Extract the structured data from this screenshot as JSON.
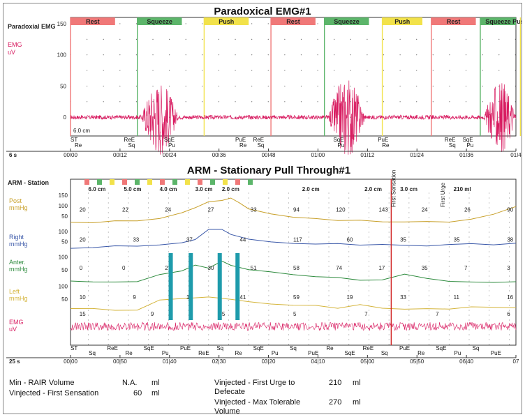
{
  "summary": {
    "min_rair_label": "Min - RAIR Volume",
    "min_rair_value": "N.A.",
    "min_rair_unit": "ml",
    "first_sensation_label": "Vinjected - First Sensation",
    "first_sensation_value": "60",
    "first_sensation_unit": "ml",
    "first_urge_label_1": "Vinjected - First Urge to",
    "first_urge_label_2": "Defecate",
    "first_urge_value": "210",
    "first_urge_unit": "ml",
    "max_tolerable_label_1": "Vinjected - Max Tolerable",
    "max_tolerable_label_2": "Volume",
    "max_tolerable_value": "270",
    "max_tolerable_unit": "ml"
  },
  "chart_data": [
    {
      "type": "line",
      "title": "Paradoxical EMG#1",
      "channel_label": "Paradoxial EMG",
      "ylabel": "EMG",
      "yunit": "uV",
      "yticks": [
        "150",
        "100",
        "50",
        "0"
      ],
      "ylim": [
        -30,
        160
      ],
      "xlim": [
        0,
        100
      ],
      "time_scale": "6 s",
      "scale_note": "6.0 cm",
      "xticks": [
        "00|00",
        "00|12",
        "00|24",
        "00|36",
        "00|48",
        "01|00",
        "01|12",
        "01|24",
        "01|36",
        "01|4"
      ],
      "segments": [
        {
          "label": "Rest",
          "start": 0,
          "end": 10,
          "color": "#f07878"
        },
        {
          "label": "Squeeze",
          "start": 15,
          "end": 25,
          "color": "#5cb56a"
        },
        {
          "label": "Push",
          "start": 30,
          "end": 40,
          "color": "#f2e24a"
        },
        {
          "label": "Rest",
          "start": 45,
          "end": 55,
          "color": "#f07878"
        },
        {
          "label": "Squeeze",
          "start": 57,
          "end": 67,
          "color": "#5cb56a"
        },
        {
          "label": "Push",
          "start": 70,
          "end": 79,
          "color": "#f2e24a"
        },
        {
          "label": "Rest",
          "start": 81,
          "end": 91,
          "color": "#f07878"
        },
        {
          "label": "Squeeze",
          "start": 92,
          "end": 100,
          "color": "#5cb56a"
        },
        {
          "label": "Push",
          "start": 101,
          "end": 107,
          "color": "#f2e24a"
        }
      ],
      "event_markers": [
        {
          "top": "ST",
          "bottom": "Re"
        },
        {
          "top": "ReE",
          "bottom": "Sq"
        },
        {
          "top": "SqE",
          "bottom": "Pu"
        },
        {
          "top": "PuE",
          "bottom": "Re"
        },
        {
          "top": "ReE",
          "bottom": "Sq"
        },
        {
          "top": "SqE",
          "bottom": "Pu"
        },
        {
          "top": "PuE",
          "bottom": "Re"
        },
        {
          "top": "ReE",
          "bottom": "Sq"
        },
        {
          "top": "SqE",
          "bottom": "Pu"
        }
      ],
      "series": [
        {
          "color": "#d81b60",
          "bursts": [
            {
              "start": 16,
              "end": 24,
              "amplitude": 110
            },
            {
              "start": 58,
              "end": 66,
              "amplitude": 120
            },
            {
              "start": 93,
              "end": 100,
              "amplitude": 105
            }
          ],
          "baseline_amplitude": 6
        }
      ]
    },
    {
      "type": "line",
      "title": "ARM - Stationary Pull Through#1",
      "channel_label": "ARM - Station",
      "time_scale": "25 s",
      "xlim": [
        0,
        100
      ],
      "xticks": [
        "00|00",
        "00|50",
        "01|40",
        "02|30",
        "03|20",
        "04|10",
        "05|00",
        "05|50",
        "06|40",
        "07"
      ],
      "position_labels": [
        "6.0 cm",
        "5.0 cm",
        "4.0 cm",
        "3.0 cm",
        "2.0 cm",
        "2.0 cm",
        "2.0 cm",
        "3.0 cm"
      ],
      "volume_labels": [
        "210 ml"
      ],
      "event_texts": [
        "First Sensation",
        "First Urge"
      ],
      "bottom_markers": [
        "ST",
        "Sq",
        "ReE",
        "Re",
        "SqE",
        "Pu",
        "PuE",
        "ReE",
        "Sq",
        "Re",
        "SqE",
        "Pu",
        "Sq",
        "PuE",
        "Re",
        "SqE",
        "ReE",
        "Sq",
        "PuE",
        "Re",
        "SqE",
        "Pu",
        "Sq",
        "PuE"
      ],
      "channels": [
        {
          "name": "Post",
          "unit": "mmHg",
          "color": "#c8a02a",
          "yticks": [
            "150",
            "100",
            "50"
          ],
          "values": [
            [
              0,
              20
            ],
            [
              5,
              20
            ],
            [
              10,
              24
            ],
            [
              15,
              26
            ],
            [
              20,
              34
            ],
            [
              25,
              60
            ],
            [
              28,
              94
            ],
            [
              31,
              120
            ],
            [
              34,
              130
            ],
            [
              36,
              143
            ],
            [
              38,
              110
            ],
            [
              40,
              80
            ],
            [
              45,
              60
            ],
            [
              50,
              48
            ],
            [
              55,
              36
            ],
            [
              60,
              30
            ],
            [
              65,
              28
            ],
            [
              70,
              26
            ],
            [
              75,
              26
            ],
            [
              80,
              24
            ],
            [
              85,
              26
            ],
            [
              90,
              35
            ],
            [
              95,
              60
            ],
            [
              100,
              90
            ]
          ],
          "labels": [
            "20",
            "22",
            "24",
            "27",
            "33",
            "94",
            "120",
            "143",
            "24",
            "26",
            "90"
          ]
        },
        {
          "name": "Right",
          "unit": "mmHg",
          "color": "#3957a8",
          "yticks": [
            "100",
            "50"
          ],
          "values": [
            [
              0,
              20
            ],
            [
              5,
              20
            ],
            [
              10,
              33
            ],
            [
              15,
              33
            ],
            [
              20,
              37
            ],
            [
              25,
              44
            ],
            [
              28,
              60
            ],
            [
              31,
              117
            ],
            [
              34,
              127
            ],
            [
              36,
              90
            ],
            [
              40,
              60
            ],
            [
              45,
              45
            ],
            [
              50,
              40
            ],
            [
              55,
              38
            ],
            [
              60,
              36
            ],
            [
              65,
              35
            ],
            [
              70,
              35
            ],
            [
              75,
              35
            ],
            [
              80,
              35
            ],
            [
              85,
              36
            ],
            [
              90,
              36
            ],
            [
              95,
              37
            ],
            [
              100,
              38
            ]
          ],
          "labels": [
            "20",
            "33",
            "37",
            "44",
            "117",
            "60",
            "35",
            "35",
            "38"
          ]
        },
        {
          "name": "Anter.",
          "unit": "mmHg",
          "color": "#2e8b3e",
          "yticks": [
            "100",
            "50"
          ],
          "values": [
            [
              0,
              0
            ],
            [
              5,
              0
            ],
            [
              10,
              0
            ],
            [
              15,
              2
            ],
            [
              20,
              30
            ],
            [
              25,
              50
            ],
            [
              28,
              65
            ],
            [
              31,
              58
            ],
            [
              34,
              80
            ],
            [
              36,
              70
            ],
            [
              40,
              50
            ],
            [
              45,
              40
            ],
            [
              50,
              30
            ],
            [
              55,
              20
            ],
            [
              60,
              15
            ],
            [
              65,
              12
            ],
            [
              70,
              10
            ],
            [
              75,
              35
            ],
            [
              80,
              12
            ],
            [
              85,
              5
            ],
            [
              90,
              3
            ],
            [
              95,
              5
            ],
            [
              100,
              7
            ]
          ],
          "labels": [
            "0",
            "0",
            "2",
            "30",
            "51",
            "58",
            "74",
            "17",
            "35",
            "7",
            "3"
          ]
        },
        {
          "name": "Left",
          "unit": "mmHg",
          "color": "#d4b43a",
          "yticks": [
            "100",
            "50"
          ],
          "values": [
            [
              0,
              10
            ],
            [
              5,
              9
            ],
            [
              10,
              10
            ],
            [
              15,
              11
            ],
            [
              20,
              41
            ],
            [
              25,
              50
            ],
            [
              28,
              59
            ],
            [
              31,
              60
            ],
            [
              34,
              55
            ],
            [
              36,
              50
            ],
            [
              40,
              40
            ],
            [
              45,
              30
            ],
            [
              50,
              25
            ],
            [
              55,
              20
            ],
            [
              60,
              19
            ],
            [
              65,
              33
            ],
            [
              70,
              15
            ],
            [
              75,
              12
            ],
            [
              80,
              11
            ],
            [
              85,
              12
            ],
            [
              90,
              14
            ],
            [
              95,
              15
            ],
            [
              100,
              16
            ]
          ],
          "labels": [
            "10",
            "9",
            "11",
            "41",
            "59",
            "19",
            "33",
            "11",
            "16"
          ]
        },
        {
          "name": "EMG",
          "unit": "uV",
          "color": "#d81b60",
          "yticks": [],
          "values": [],
          "labels": [
            "15",
            "9",
            "5",
            "5",
            "7",
            "7",
            "6"
          ]
        }
      ],
      "bar_markers": [
        {
          "x": 22.5,
          "channel_span": [
            2,
            3
          ],
          "color": "#1e9bab"
        },
        {
          "x": 27.0,
          "channel_span": [
            2,
            3
          ],
          "color": "#1e9bab"
        },
        {
          "x": 33.5,
          "channel_span": [
            2,
            3
          ],
          "color": "#1e9bab"
        },
        {
          "x": 37.5,
          "channel_span": [
            2,
            3
          ],
          "color": "#1e9bab"
        }
      ],
      "vertical_event_x": 72
    }
  ]
}
